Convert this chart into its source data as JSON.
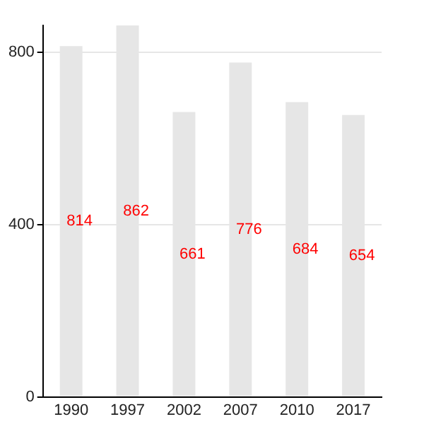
{
  "chart_data": {
    "type": "bar",
    "categories": [
      "1990",
      "1997",
      "2002",
      "2007",
      "2010",
      "2017"
    ],
    "values": [
      814,
      862,
      661,
      776,
      684,
      654
    ],
    "color": "#e6e6e6",
    "ylim": [
      0,
      862
    ],
    "yticks": [
      0,
      400,
      800
    ],
    "grid": "y",
    "data_labels": true
  }
}
